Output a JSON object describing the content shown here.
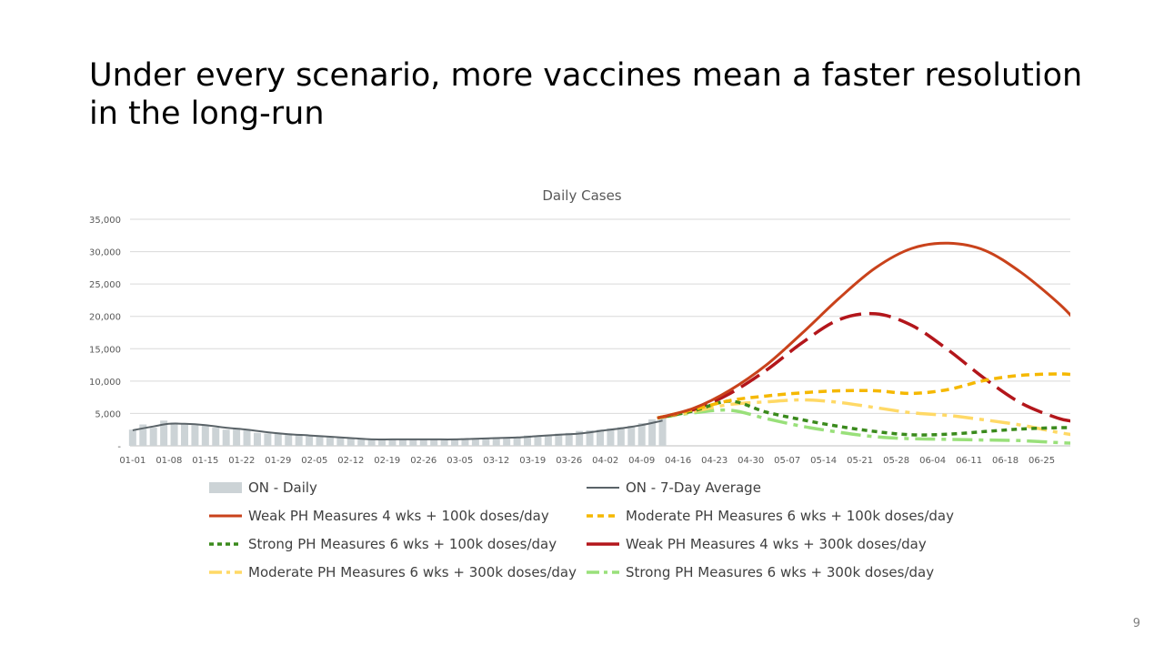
{
  "slide": {
    "title_line1": "Under every scenario, more vaccines mean a faster resolution",
    "title_line2": "in the long-run",
    "page_number": "9"
  },
  "chart_data": {
    "type": "line",
    "title": "Daily Cases",
    "xlabel": "",
    "ylabel": "",
    "ylim": [
      0,
      35000
    ],
    "yticks": [
      {
        "value": 0,
        "label": "-"
      },
      {
        "value": 5000,
        "label": "5,000"
      },
      {
        "value": 10000,
        "label": "10,000"
      },
      {
        "value": 15000,
        "label": "15,000"
      },
      {
        "value": 20000,
        "label": "20,000"
      },
      {
        "value": 25000,
        "label": "25,000"
      },
      {
        "value": 30000,
        "label": "30,000"
      },
      {
        "value": 35000,
        "label": "35,000"
      }
    ],
    "x_start": "01-01",
    "x_end": "06-30",
    "xticks": [
      "01-01",
      "01-08",
      "01-15",
      "01-22",
      "01-29",
      "02-05",
      "02-12",
      "02-19",
      "02-26",
      "03-05",
      "03-12",
      "03-19",
      "03-26",
      "04-02",
      "04-09",
      "04-16",
      "04-23",
      "04-30",
      "05-07",
      "05-14",
      "05-21",
      "05-28",
      "06-04",
      "06-11",
      "06-18",
      "06-25"
    ],
    "grid": true,
    "legend_position": "bottom",
    "daily_bars": {
      "name": "ON - Daily",
      "color": "#ccd3d6",
      "x": [
        "01-01",
        "01-03",
        "01-05",
        "01-07",
        "01-09",
        "01-11",
        "01-13",
        "01-15",
        "01-17",
        "01-19",
        "01-21",
        "01-23",
        "01-25",
        "01-27",
        "01-29",
        "01-31",
        "02-02",
        "02-04",
        "02-06",
        "02-08",
        "02-10",
        "02-12",
        "02-14",
        "02-16",
        "02-18",
        "02-20",
        "02-22",
        "02-24",
        "02-26",
        "02-28",
        "03-02",
        "03-04",
        "03-06",
        "03-08",
        "03-10",
        "03-12",
        "03-14",
        "03-16",
        "03-18",
        "03-20",
        "03-22",
        "03-24",
        "03-26",
        "03-28",
        "03-30",
        "04-01",
        "04-03",
        "04-05",
        "04-07",
        "04-09",
        "04-11",
        "04-13"
      ],
      "values": [
        2500,
        3300,
        2800,
        3900,
        3600,
        3300,
        3200,
        3100,
        2800,
        2500,
        2700,
        2400,
        2000,
        1900,
        1900,
        1700,
        1800,
        1500,
        1400,
        1300,
        1200,
        1100,
        1100,
        1000,
        1000,
        1000,
        1000,
        1100,
        1000,
        1100,
        1000,
        1100,
        1000,
        1100,
        1200,
        1300,
        1300,
        1400,
        1600,
        1600,
        1700,
        1900,
        2000,
        2300,
        2400,
        2500,
        2700,
        2900,
        3100,
        3500,
        4100,
        4400
      ]
    },
    "series": [
      {
        "name": "ON - 7-Day Average",
        "color": "#5a6368",
        "dash": "solid",
        "x": [
          "01-01",
          "01-05",
          "01-08",
          "01-11",
          "01-15",
          "01-19",
          "01-23",
          "01-27",
          "01-31",
          "02-04",
          "02-08",
          "02-12",
          "02-16",
          "02-20",
          "02-24",
          "02-28",
          "03-04",
          "03-08",
          "03-12",
          "03-16",
          "03-20",
          "03-24",
          "03-28",
          "04-01",
          "04-05",
          "04-09",
          "04-13"
        ],
        "values": [
          2400,
          3000,
          3400,
          3400,
          3200,
          2800,
          2500,
          2100,
          1800,
          1600,
          1400,
          1200,
          1000,
          1000,
          1000,
          1000,
          1000,
          1100,
          1200,
          1300,
          1500,
          1700,
          1900,
          2300,
          2700,
          3200,
          3900
        ]
      },
      {
        "name": "Weak PH Measures 4 wks + 100k doses/day",
        "color": "#c9421b",
        "dash": "solid",
        "x": [
          "04-12",
          "04-19",
          "04-26",
          "05-03",
          "05-10",
          "05-17",
          "05-24",
          "05-31",
          "06-07",
          "06-14",
          "06-21",
          "06-28",
          "07-01"
        ],
        "values": [
          4300,
          5800,
          8600,
          12500,
          17500,
          22800,
          27500,
          30500,
          31300,
          30200,
          26800,
          22200,
          19800
        ]
      },
      {
        "name": "Moderate PH Measures 6 wks + 100k doses/day",
        "color": "#f5b800",
        "dash": "dash",
        "x": [
          "04-12",
          "04-19",
          "04-26",
          "05-03",
          "05-10",
          "05-17",
          "05-24",
          "05-31",
          "06-07",
          "06-14",
          "06-21",
          "06-28",
          "07-01"
        ],
        "values": [
          4300,
          5600,
          7000,
          7700,
          8200,
          8500,
          8500,
          8100,
          8700,
          10100,
          10900,
          11100,
          11000
        ]
      },
      {
        "name": "Strong PH Measures 6 wks + 100k doses/day",
        "color": "#3a8a1c",
        "dash": "dot",
        "x": [
          "04-12",
          "04-19",
          "04-26",
          "05-03",
          "05-10",
          "05-17",
          "05-24",
          "05-31",
          "06-07",
          "06-14",
          "06-21",
          "06-28",
          "07-01"
        ],
        "values": [
          4300,
          5400,
          6900,
          5200,
          4000,
          3000,
          2200,
          1700,
          1800,
          2200,
          2600,
          2800,
          2800
        ]
      },
      {
        "name": "Weak PH Measures 4 wks + 300k doses/day",
        "color": "#b3161b",
        "dash": "longdash",
        "x": [
          "04-12",
          "04-19",
          "04-26",
          "05-03",
          "05-10",
          "05-17",
          "05-24",
          "05-31",
          "06-07",
          "06-14",
          "06-21",
          "06-28",
          "07-01"
        ],
        "values": [
          4300,
          5600,
          8100,
          11700,
          16000,
          19500,
          20400,
          18600,
          14800,
          10400,
          6600,
          4300,
          3800
        ]
      },
      {
        "name": "Moderate PH Measures 6 wks + 300k doses/day",
        "color": "#ffd966",
        "dash": "dashdot",
        "x": [
          "04-12",
          "04-19",
          "04-26",
          "05-03",
          "05-10",
          "05-17",
          "05-24",
          "05-31",
          "06-07",
          "06-14",
          "06-21",
          "06-28",
          "07-01"
        ],
        "values": [
          4300,
          5300,
          6400,
          6800,
          7100,
          6700,
          5900,
          5100,
          4700,
          4000,
          3200,
          2100,
          1700
        ]
      },
      {
        "name": "Strong PH Measures 6 wks + 300k doses/day",
        "color": "#99e07a",
        "dash": "dashdot",
        "x": [
          "04-12",
          "04-19",
          "04-26",
          "05-03",
          "05-10",
          "05-17",
          "05-24",
          "05-31",
          "06-07",
          "06-14",
          "06-21",
          "06-28",
          "07-01"
        ],
        "values": [
          4300,
          5100,
          5500,
          4200,
          3000,
          2100,
          1400,
          1100,
          1000,
          900,
          800,
          500,
          400
        ]
      }
    ]
  }
}
